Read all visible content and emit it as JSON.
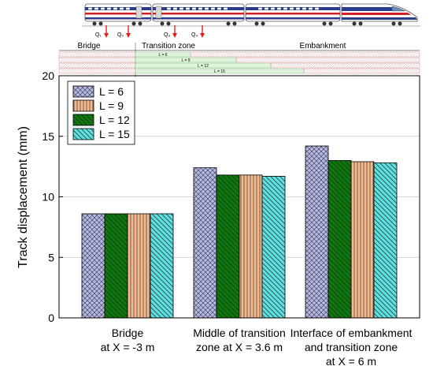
{
  "header": {
    "loads": [
      "Q₁",
      "Q₂",
      "Q₃",
      "Q₄"
    ],
    "zones": [
      "Bridge",
      "Transition zone",
      "Embankment"
    ],
    "lengths": [
      "L = 6",
      "L = 9",
      "L = 12",
      "L = 15"
    ]
  },
  "chart_data": {
    "type": "bar",
    "ylabel": "Track displacement (mm)",
    "xlabel": "",
    "ylim": [
      0,
      20
    ],
    "yticks": [
      0,
      5,
      10,
      15,
      20
    ],
    "grid": true,
    "legend_position": "top-left",
    "categories": [
      [
        "Bridge",
        "at X = -3 m"
      ],
      [
        "Middle of transition",
        "zone at X = 3.6 m"
      ],
      [
        "Interface of embankment",
        "and transition zone",
        "at X = 6 m"
      ]
    ],
    "series": [
      {
        "name": "L = 6",
        "values": [
          8.6,
          12.4,
          14.2
        ],
        "fill": "#b5b8e8",
        "pattern": "crosshatch"
      },
      {
        "name": "L = 9",
        "values": [
          8.6,
          11.8,
          12.9
        ],
        "fill": "#f5b98c",
        "pattern": "vertical"
      },
      {
        "name": "L = 12",
        "values": [
          8.6,
          11.8,
          13.0
        ],
        "fill": "#0b7a0b",
        "pattern": "diagonal"
      },
      {
        "name": "L = 15",
        "values": [
          8.6,
          11.7,
          12.8
        ],
        "fill": "#5ce0e0",
        "pattern": "diagonal"
      }
    ],
    "bar_order": [
      [
        "L = 6",
        "L = 12",
        "L = 9",
        "L = 15"
      ],
      [
        "L = 6",
        "L = 12",
        "L = 9",
        "L = 15"
      ],
      [
        "L = 6",
        "L = 12",
        "L = 9",
        "L = 15"
      ]
    ]
  }
}
